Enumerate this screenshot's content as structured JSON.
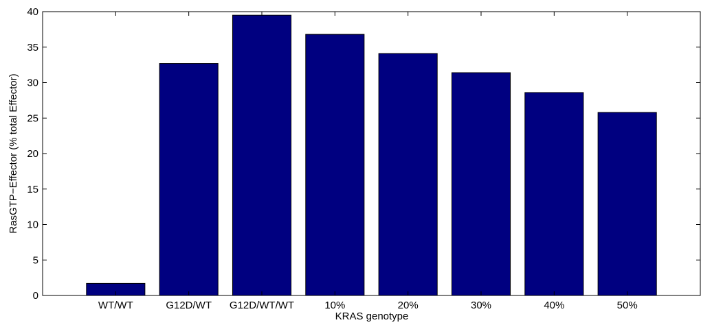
{
  "chart_data": {
    "type": "bar",
    "x_label": "KRAS genotype",
    "y_label": "RasGTP−Effector (% total Effector)",
    "categories": [
      "WT/WT",
      "G12D/WT",
      "G12D/WT/WT",
      "10%",
      "20%",
      "30%",
      "40%",
      "50%"
    ],
    "values": [
      1.7,
      32.7,
      39.5,
      36.8,
      34.1,
      31.4,
      28.6,
      25.8
    ],
    "color": "#000080",
    "ylim": [
      0,
      40
    ],
    "yticks": [
      0,
      5,
      10,
      15,
      20,
      25,
      30,
      35,
      40
    ],
    "grid": false
  }
}
